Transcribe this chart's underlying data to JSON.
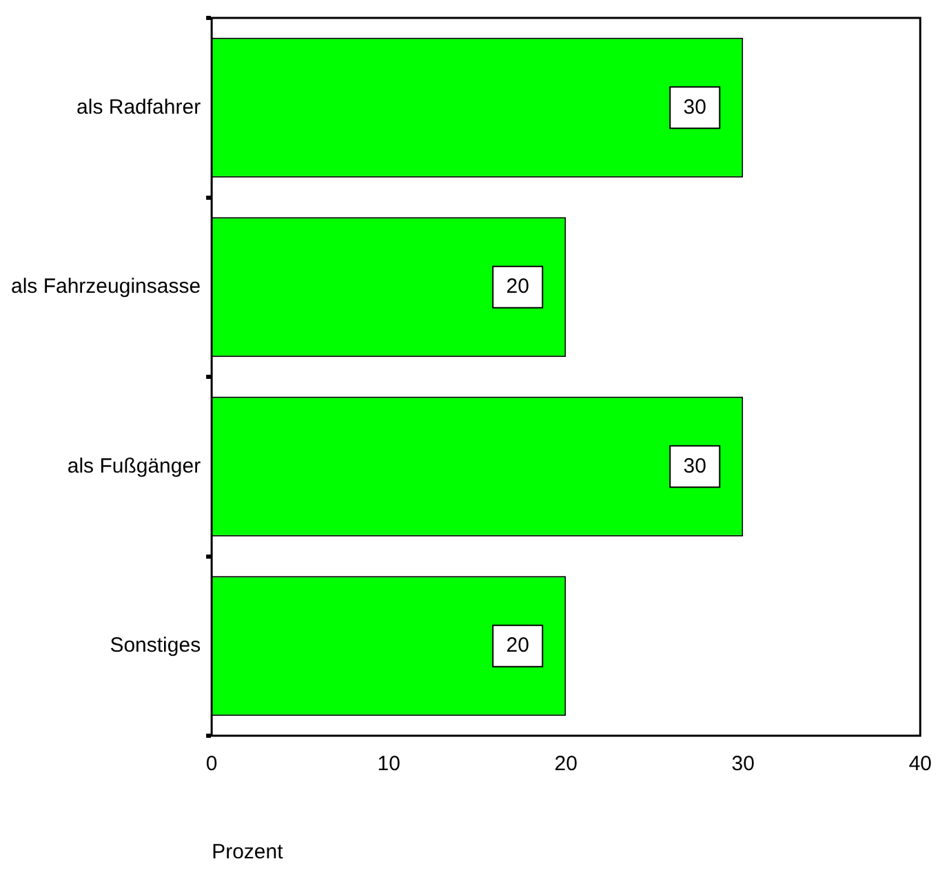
{
  "chart_data": {
    "type": "bar",
    "orientation": "horizontal",
    "xlabel": "Prozent",
    "categories": [
      "als Radfahrer",
      "als Fahrzeuginsasse",
      "als Fußgänger",
      "Sonstiges"
    ],
    "values": [
      30,
      20,
      30,
      20
    ],
    "color": "#00ff00",
    "xlim": [
      0,
      40
    ],
    "xticks": [
      0,
      10,
      20,
      30,
      40
    ],
    "data_labels": true,
    "grid": false,
    "legend": false
  }
}
